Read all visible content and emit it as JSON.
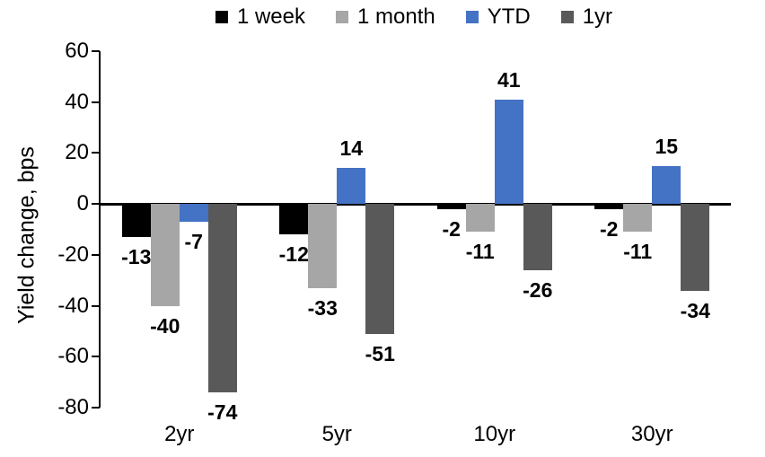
{
  "colors": {
    "axis": "#000000",
    "text": "#000000",
    "background": "#ffffff"
  },
  "chart_data": {
    "type": "bar",
    "title": "",
    "xlabel": "",
    "ylabel": "Yield change, bps",
    "ylim": [
      -80,
      60
    ],
    "yticks": [
      60,
      40,
      20,
      0,
      -20,
      -40,
      -60,
      -80
    ],
    "grid": false,
    "legend_position": "top",
    "categories": [
      "2yr",
      "5yr",
      "10yr",
      "30yr"
    ],
    "series": [
      {
        "name": "1 week",
        "color": "#000000",
        "values": [
          -13,
          -12,
          -2,
          -2
        ]
      },
      {
        "name": "1 month",
        "color": "#A6A6A6",
        "values": [
          -40,
          -33,
          -11,
          -11
        ]
      },
      {
        "name": "YTD",
        "color": "#4472C4",
        "values": [
          -7,
          14,
          41,
          15
        ]
      },
      {
        "name": "1yr",
        "color": "#595959",
        "values": [
          -74,
          -51,
          -26,
          -34
        ]
      }
    ]
  }
}
